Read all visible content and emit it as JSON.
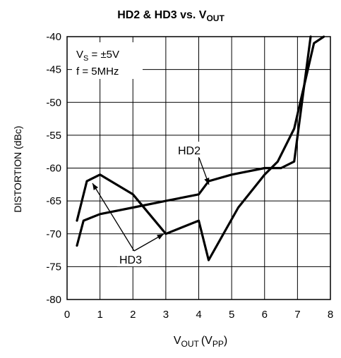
{
  "chart_data": {
    "type": "line",
    "title": {
      "main": "HD2 & HD3 vs. V",
      "sub": "OUT"
    },
    "xlabel": {
      "v": "V",
      "sub1": "OUT",
      "paren": "(V",
      "sub2": "PP",
      "close": ")"
    },
    "ylabel": "DISTORTION (dBc)",
    "xlim": [
      0,
      8
    ],
    "ylim": [
      -80,
      -40
    ],
    "grid": true,
    "x_ticks": [
      "0",
      "1",
      "2",
      "3",
      "4",
      "5",
      "6",
      "7",
      "8"
    ],
    "y_ticks": [
      "-40",
      "-45",
      "-50",
      "-55",
      "-60",
      "-65",
      "-70",
      "-75",
      "-80"
    ],
    "conditions": {
      "line1": {
        "v": "V",
        "sub": "S",
        "rest": " = ±5V"
      },
      "line2": "f = 5MHz"
    },
    "annotations": {
      "hd2": "HD2",
      "hd3": "HD3"
    },
    "series": [
      {
        "name": "HD2",
        "x": [
          0.3,
          0.5,
          1.0,
          2.0,
          3.0,
          4.0,
          4.3,
          5.0,
          6.0,
          6.5,
          6.9,
          7.4
        ],
        "y": [
          -71.8,
          -68,
          -67,
          -66,
          -65,
          -64,
          -62,
          -61,
          -60,
          -60,
          -59,
          -40
        ]
      },
      {
        "name": "HD3",
        "x": [
          0.3,
          0.6,
          1.0,
          2.0,
          3.0,
          4.0,
          4.3,
          5.2,
          6.0,
          6.4,
          6.9,
          7.5,
          7.8
        ],
        "y": [
          -68,
          -62,
          -61,
          -64,
          -70,
          -68,
          -74,
          -66,
          -61,
          -59,
          -54,
          -41,
          -40
        ]
      }
    ]
  }
}
